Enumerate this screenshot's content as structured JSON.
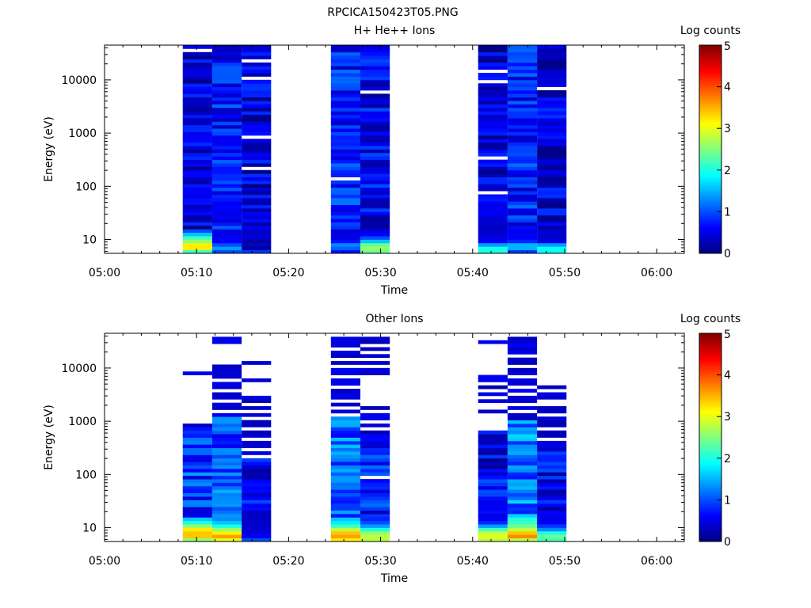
{
  "page_title": "RPCICA150423T05.PNG",
  "colors": {
    "background": "#ffffff",
    "axis": "#000000",
    "colormap": "jet"
  },
  "chart_data": [
    {
      "type": "heatmap",
      "title": "H+ He++ Ions",
      "xlabel": "Time",
      "ylabel": "Energy (eV)",
      "x_ticks": [
        "05:00",
        "05:10",
        "05:20",
        "05:30",
        "05:40",
        "05:50",
        "06:00"
      ],
      "x_range_minutes": [
        0,
        63
      ],
      "y_scale": "log",
      "y_range": [
        5.5,
        45000
      ],
      "y_ticks": [
        10,
        100,
        1000,
        10000
      ],
      "y_tick_labels": [
        "10",
        "100",
        "1000",
        "10000"
      ],
      "colorbar": {
        "label": "Log counts",
        "range": [
          0,
          5
        ],
        "ticks": [
          "0",
          "1",
          "2",
          "3",
          "4",
          "5"
        ]
      },
      "scans": [
        {
          "start_min": 8.5,
          "end_min": 11.7,
          "low_bins": [
            2.2,
            3.2,
            3.2,
            2.6,
            2.2,
            1.6,
            1.0
          ],
          "high_level": 0.45,
          "gaps": [
            36000
          ]
        },
        {
          "start_min": 11.7,
          "end_min": 14.9,
          "low_bins": [
            1.0,
            1.4,
            1.0,
            0.6,
            0.6,
            0.5,
            0.5
          ],
          "high_level": 0.7,
          "gaps": []
        },
        {
          "start_min": 14.9,
          "end_min": 18.1,
          "low_bins": [
            0.9,
            0.2,
            0.3,
            0.2,
            0.4,
            0.4,
            0.35
          ],
          "high_level": 0.45,
          "gaps": [
            23000,
            11000,
            900,
            220
          ]
        },
        {
          "start_min": 24.6,
          "end_min": 27.8,
          "low_bins": [
            0.7,
            1.1,
            1.3,
            0.7,
            0.5,
            0.5,
            0.4
          ],
          "high_level": 0.75,
          "gaps": [
            140
          ]
        },
        {
          "start_min": 27.8,
          "end_min": 31.0,
          "low_bins": [
            2.4,
            2.6,
            2.4,
            1.6,
            1.0,
            0.6,
            0.5
          ],
          "high_level": 0.55,
          "gaps": [
            5500
          ]
        },
        {
          "start_min": 40.6,
          "end_min": 43.8,
          "low_bins": [
            2.0,
            2.0,
            1.4,
            0.6,
            0.5,
            0.4,
            0.4
          ],
          "high_level": 0.4,
          "gaps": [
            15000,
            9500,
            320,
            80
          ]
        },
        {
          "start_min": 43.8,
          "end_min": 47.0,
          "low_bins": [
            0.9,
            1.5,
            1.5,
            0.8,
            0.6,
            0.6,
            0.5
          ],
          "high_level": 0.75,
          "gaps": []
        },
        {
          "start_min": 47.0,
          "end_min": 50.2,
          "low_bins": [
            1.9,
            1.9,
            1.4,
            0.5,
            0.4,
            0.4,
            0.4
          ],
          "high_level": 0.45,
          "gaps": [
            7000
          ]
        }
      ]
    },
    {
      "type": "heatmap",
      "title": "Other Ions",
      "xlabel": "Time",
      "ylabel": "Energy (eV)",
      "x_ticks": [
        "05:00",
        "05:10",
        "05:20",
        "05:30",
        "05:40",
        "05:50",
        "06:00"
      ],
      "x_range_minutes": [
        0,
        63
      ],
      "y_scale": "log",
      "y_range": [
        5.5,
        45000
      ],
      "y_ticks": [
        10,
        100,
        1000,
        10000
      ],
      "y_tick_labels": [
        "10",
        "100",
        "1000",
        "10000"
      ],
      "colorbar": {
        "label": "Log counts",
        "range": [
          0,
          5
        ],
        "ticks": [
          "0",
          "1",
          "2",
          "3",
          "4",
          "5"
        ]
      },
      "scans": [
        {
          "start_min": 8.5,
          "end_min": 11.7,
          "low_bins": [
            2.6,
            3.4,
            3.4,
            3.2,
            2.6,
            2.0,
            1.6
          ],
          "high_level": 0.8,
          "top_emin": 800,
          "sparse_above": 300,
          "lines": [
            8300,
            900
          ]
        },
        {
          "start_min": 11.7,
          "end_min": 14.9,
          "low_bins": [
            3.0,
            3.6,
            3.2,
            2.6,
            2.0,
            1.6,
            1.3
          ],
          "high_level": 0.9,
          "top_emin": 1200,
          "sparse_above": 1200,
          "lines": [
            11000,
            10000,
            8500,
            6500,
            5200,
            4300,
            3500,
            2700,
            2200,
            1700,
            1400,
            32000,
            29000,
            35000
          ]
        },
        {
          "start_min": 14.9,
          "end_min": 18.1,
          "low_bins": [
            1.0,
            0.6,
            0.5,
            0.4,
            0.4,
            0.35,
            0.35
          ],
          "high_level": 0.45,
          "top_emin": 200,
          "sparse_above": 200,
          "lines": [
            13000,
            6000,
            3000,
            2400,
            1700,
            1300,
            1000,
            800,
            650,
            500,
            400,
            330,
            270
          ]
        },
        {
          "start_min": 24.6,
          "end_min": 27.8,
          "low_bins": [
            3.2,
            3.6,
            3.4,
            2.8,
            2.2,
            1.8,
            1.6
          ],
          "high_level": 1.0,
          "top_emin": 1200,
          "sparse_above": 1200,
          "lines": [
            36000,
            33000,
            30000,
            25000,
            20000,
            16000,
            13000,
            10000,
            8000,
            6000,
            5000,
            4000,
            3200,
            2600,
            2000,
            1600
          ]
        },
        {
          "start_min": 27.8,
          "end_min": 31.0,
          "low_bins": [
            2.8,
            2.8,
            2.6,
            2.0,
            1.4,
            1.0,
            0.8
          ],
          "high_level": 0.6,
          "top_emin": 700,
          "sparse_above": 700,
          "lines": [
            36000,
            29000,
            22000,
            16000,
            13000,
            10000,
            8000,
            1700,
            1400,
            1100,
            900,
            85
          ]
        },
        {
          "start_min": 40.6,
          "end_min": 43.8,
          "low_bins": [
            2.8,
            3.0,
            2.8,
            2.2,
            1.4,
            0.8,
            0.6
          ],
          "high_level": 0.45,
          "top_emin": 700,
          "sparse_above": 700,
          "lines": [
            33000,
            7000,
            5500,
            4200,
            3300,
            2400,
            1600
          ]
        },
        {
          "start_min": 43.8,
          "end_min": 47.0,
          "low_bins": [
            2.8,
            3.7,
            3.4,
            2.8,
            2.4,
            2.2,
            2.0
          ],
          "high_level": 1.1,
          "top_emin": 1000,
          "sparse_above": 1000,
          "lines": [
            35000,
            33000,
            31000,
            27000,
            23000,
            19000,
            15000,
            12000,
            9500,
            7500,
            6000,
            4800,
            3800,
            3000,
            2300,
            1800,
            1400,
            1150
          ]
        },
        {
          "start_min": 47.0,
          "end_min": 50.2,
          "low_bins": [
            2.2,
            2.4,
            2.0,
            1.3,
            0.9,
            0.6,
            0.5
          ],
          "high_level": 0.5,
          "top_emin": 300,
          "sparse_above": 300,
          "lines": [
            4700,
            4100,
            3500,
            2600,
            1900,
            1500,
            1200,
            1000,
            800,
            650,
            520,
            420,
            340
          ]
        }
      ]
    }
  ]
}
